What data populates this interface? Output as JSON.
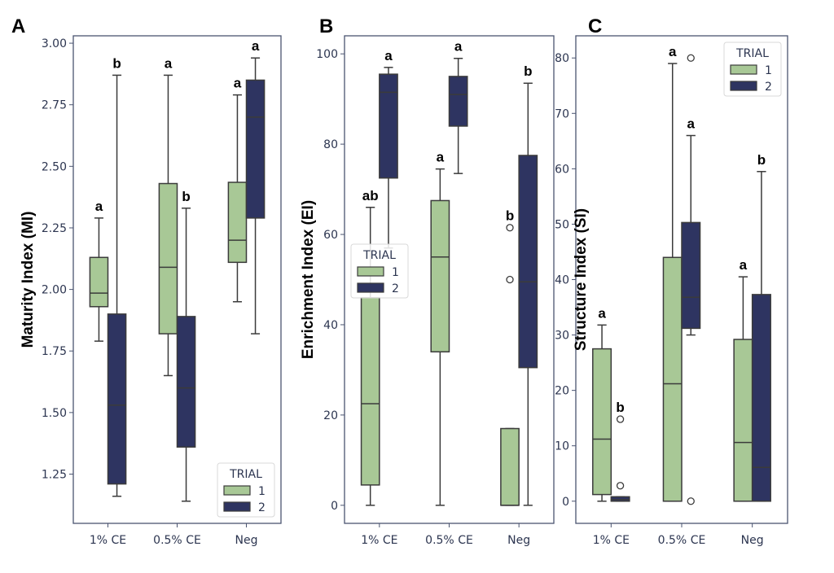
{
  "chart_data": [
    {
      "type": "box",
      "panel": "A",
      "ylabel": "Maturity Index (MI)",
      "ylim": [
        1.05,
        3.03
      ],
      "yticks": [
        1.25,
        1.5,
        1.75,
        2.0,
        2.25,
        2.5,
        2.75,
        3.0
      ],
      "ytick_labels": [
        "1.25",
        "1.50",
        "1.75",
        "2.00",
        "2.25",
        "2.50",
        "2.75",
        "3.00"
      ],
      "categories": [
        "1% CE",
        "0.5% CE",
        "Neg"
      ],
      "legend": {
        "title": "TRIAL",
        "position": "bottom-right"
      },
      "series": [
        {
          "name": "1",
          "color": "#a8c896",
          "boxes": [
            {
              "min": 1.79,
              "q1": 1.93,
              "median": 1.985,
              "q3": 2.13,
              "max": 2.29,
              "outliers": [],
              "letter": "a"
            },
            {
              "min": 1.65,
              "q1": 1.82,
              "median": 2.09,
              "q3": 2.43,
              "max": 2.87,
              "outliers": [],
              "letter": "a"
            },
            {
              "min": 1.95,
              "q1": 2.11,
              "median": 2.2,
              "q3": 2.435,
              "max": 2.79,
              "outliers": [],
              "letter": "a"
            }
          ]
        },
        {
          "name": "2",
          "color": "#2e3461",
          "boxes": [
            {
              "min": 1.16,
              "q1": 1.21,
              "median": 1.53,
              "q3": 1.9,
              "max": 2.87,
              "outliers": [],
              "letter": "b"
            },
            {
              "min": 1.14,
              "q1": 1.36,
              "median": 1.6,
              "q3": 1.89,
              "max": 2.33,
              "outliers": [],
              "letter": "b"
            },
            {
              "min": 1.82,
              "q1": 2.29,
              "median": 2.7,
              "q3": 2.85,
              "max": 2.94,
              "outliers": [],
              "letter": "a"
            }
          ]
        }
      ]
    },
    {
      "type": "box",
      "panel": "B",
      "ylabel": "Enrichment Index (EI)",
      "ylim": [
        -4,
        104
      ],
      "yticks": [
        0,
        20,
        40,
        60,
        80,
        100
      ],
      "ytick_labels": [
        "0",
        "20",
        "40",
        "60",
        "80",
        "100"
      ],
      "categories": [
        "1% CE",
        "0.5% CE",
        "Neg"
      ],
      "legend": {
        "title": "TRIAL",
        "position": "center-left"
      },
      "series": [
        {
          "name": "1",
          "color": "#a8c896",
          "boxes": [
            {
              "min": 0,
              "q1": 4.5,
              "median": 22.5,
              "q3": 46,
              "max": 66,
              "outliers": [],
              "letter": "ab"
            },
            {
              "min": 0,
              "q1": 34,
              "median": 55,
              "q3": 67.5,
              "max": 74.5,
              "outliers": [],
              "letter": "a"
            },
            {
              "min": 0,
              "q1": 0,
              "median": 0,
              "q3": 17,
              "max": 17,
              "outliers": [
                50,
                61.5
              ],
              "letter": "b"
            }
          ]
        },
        {
          "name": "2",
          "color": "#2e3461",
          "boxes": [
            {
              "min": 57,
              "q1": 72.5,
              "median": 91.5,
              "q3": 95.5,
              "max": 97,
              "outliers": [],
              "letter": "a"
            },
            {
              "min": 73.5,
              "q1": 84,
              "median": 91,
              "q3": 95,
              "max": 99,
              "outliers": [],
              "letter": "a"
            },
            {
              "min": 0,
              "q1": 30.5,
              "median": 49.5,
              "q3": 77.5,
              "max": 93.5,
              "outliers": [],
              "letter": "b"
            }
          ]
        }
      ]
    },
    {
      "type": "box",
      "panel": "C",
      "ylabel": "Structure Index (SI)",
      "ylim": [
        -4,
        84
      ],
      "yticks": [
        0,
        10,
        20,
        30,
        40,
        50,
        60,
        70,
        80
      ],
      "ytick_labels": [
        "0",
        "10",
        "20",
        "30",
        "40",
        "50",
        "60",
        "70",
        "80"
      ],
      "categories": [
        "1% CE",
        "0.5% CE",
        "Neg"
      ],
      "legend": {
        "title": "TRIAL",
        "position": "top-right"
      },
      "series": [
        {
          "name": "1",
          "color": "#a8c896",
          "boxes": [
            {
              "min": 0,
              "q1": 1.2,
              "median": 11.2,
              "q3": 27.5,
              "max": 31.8,
              "outliers": [],
              "letter": "a"
            },
            {
              "min": 0,
              "q1": 0,
              "median": 21.2,
              "q3": 44,
              "max": 79,
              "outliers": [],
              "letter": "a"
            },
            {
              "min": 0,
              "q1": 0,
              "median": 10.6,
              "q3": 29.2,
              "max": 40.5,
              "outliers": [],
              "letter": "a"
            }
          ]
        },
        {
          "name": "2",
          "color": "#2e3461",
          "boxes": [
            {
              "min": 0,
              "q1": 0,
              "median": 0.3,
              "q3": 0.8,
              "max": 0.8,
              "outliers": [
                2.8,
                14.8
              ],
              "letter": "b"
            },
            {
              "min": 30,
              "q1": 31.2,
              "median": 36.8,
              "q3": 50.3,
              "max": 66,
              "outliers": [
                0,
                80
              ],
              "letter": "a"
            },
            {
              "min": 0,
              "q1": 0,
              "median": 6.1,
              "q3": 37.3,
              "max": 59.5,
              "outliers": [],
              "letter": "b"
            }
          ]
        }
      ]
    }
  ]
}
